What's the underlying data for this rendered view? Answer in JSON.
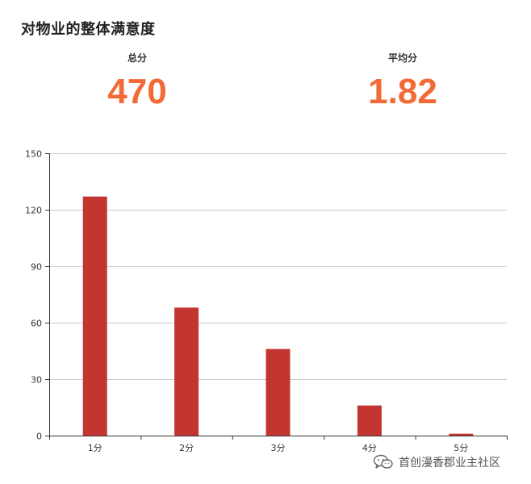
{
  "title": "对物业的整体满意度",
  "stats": {
    "total": {
      "label": "总分",
      "value": "470"
    },
    "average": {
      "label": "平均分",
      "value": "1.82"
    }
  },
  "chart_data": {
    "type": "bar",
    "categories": [
      "1分",
      "2分",
      "3分",
      "4分",
      "5分"
    ],
    "values": [
      127,
      68,
      46,
      16,
      1
    ],
    "ylim": [
      0,
      150
    ],
    "yticks": [
      0,
      30,
      60,
      90,
      120,
      150
    ],
    "grid": true,
    "bar_color": "#c23531",
    "xlabel": "",
    "ylabel": ""
  },
  "watermark": {
    "icon": "wechat-icon",
    "text": "首创漫香郡业主社区"
  },
  "colors": {
    "accent": "#f26a35",
    "bar": "#c23531"
  }
}
